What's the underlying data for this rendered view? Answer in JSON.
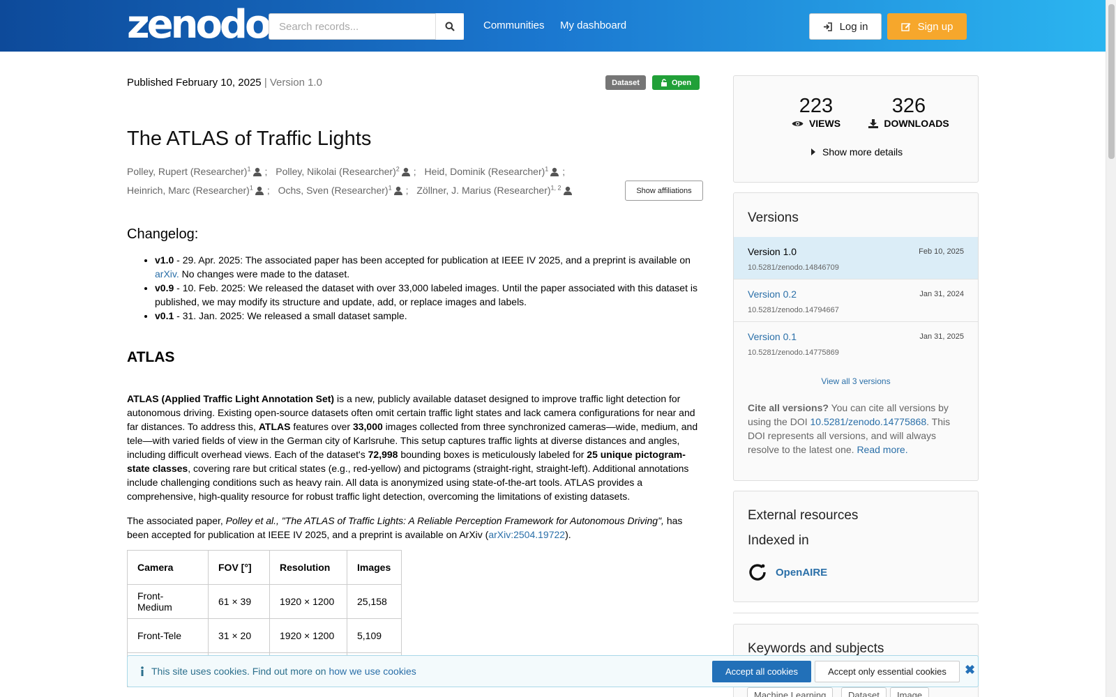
{
  "header": {
    "logo": "zenodo",
    "search_placeholder": "Search records...",
    "nav": [
      "Communities",
      "My dashboard"
    ],
    "login_label": "Log in",
    "signup_label": "Sign up"
  },
  "record": {
    "published_label": "Published February 10, 2025",
    "version_label": "| Version 1.0",
    "badge_type": "Dataset",
    "badge_access": "Open",
    "title": "The ATLAS of Traffic Lights",
    "creators": [
      {
        "name": "Polley, Rupert (Researcher)",
        "aff": "1"
      },
      {
        "name": "Polley, Nikolai (Researcher)",
        "aff": "2"
      },
      {
        "name": "Heid, Dominik (Researcher)",
        "aff": "1"
      },
      {
        "name": "Heinrich, Marc (Researcher)",
        "aff": "1"
      },
      {
        "name": "Ochs, Sven (Researcher)",
        "aff": "1"
      },
      {
        "name": "Zöllner, J. Marius (Researcher)",
        "aff": "1, 2"
      }
    ],
    "show_affiliations": "Show affiliations"
  },
  "changelog": {
    "heading": "Changelog:",
    "items": [
      {
        "ver": "v1.0",
        "pre": " - 29. Apr. 2025: The associated paper has been accepted for publication at IEEE IV 2025, and a preprint is available on ",
        "link": "arXiv.",
        "post": " No changes were made to the dataset."
      },
      {
        "ver": "v0.9",
        "pre": " - 10. Feb. 2025: We released the dataset with over 33,000 labeled images. Until the paper associated with this dataset is published, we may modify its structure and update, add, or replace images and labels.",
        "link": "",
        "post": ""
      },
      {
        "ver": "v0.1",
        "pre": " - 31. Jan. 2025: We released a small dataset sample.",
        "link": "",
        "post": ""
      }
    ]
  },
  "description": {
    "heading": "ATLAS",
    "p1": [
      {
        "b": "ATLAS (Applied Traffic Light Annotation Set)"
      },
      {
        "t": " is a new, publicly available dataset designed to improve traffic light detection for autonomous driving. Existing open-source datasets often omit certain traffic light states and lack camera configurations for near and far distances. To address this, "
      },
      {
        "b": "ATLAS"
      },
      {
        "t": " features over "
      },
      {
        "b": "33,000"
      },
      {
        "t": " images collected from three synchronized cameras—wide, medium, and tele—with varied fields of view in the German city of Karlsruhe. This setup captures traffic lights at diverse distances and angles, including difficult overhead views. Each of the dataset's "
      },
      {
        "b": "72,998"
      },
      {
        "t": " bounding boxes is meticulously labeled for "
      },
      {
        "b": "25 unique pictogram-state classes"
      },
      {
        "t": ", covering rare but critical states (e.g., red-yellow) and pictograms (straight-right, straight-left). Additional annotations include challenging conditions such as heavy rain. All data is anonymized using state-of-the-art tools. ATLAS provides a comprehensive, high-quality resource for robust traffic light detection, overcoming the limitations of existing datasets."
      }
    ],
    "p2_pre": "The associated paper, ",
    "p2_italic": "Polley et al., \"The ATLAS of Traffic Lights: A Reliable Perception Framework for Autonomous Driving\",",
    "p2_mid": " has been accepted for publication at IEEE IV 2025, and a preprint is available on ArXiv (",
    "p2_link": "arXiv:2504.19722",
    "p2_post": ")."
  },
  "camera_table": {
    "headers": [
      "Camera",
      "FOV [°]",
      "Resolution",
      "Images"
    ],
    "rows": [
      [
        "Front-Medium",
        "61 × 39",
        "1920 × 1200",
        "25,158"
      ],
      [
        "Front-Tele",
        "31 × 20",
        "1920 × 1200",
        "5,109"
      ]
    ]
  },
  "stats": {
    "views": "223",
    "views_label": "VIEWS",
    "downloads": "326",
    "downloads_label": "DOWNLOADS",
    "more_details": "Show more details"
  },
  "versions": {
    "heading": "Versions",
    "items": [
      {
        "name": "Version 1.0",
        "date": "Feb 10, 2025",
        "doi": "10.5281/zenodo.14846709",
        "active": true
      },
      {
        "name": "Version 0.2",
        "date": "Jan 31, 2024",
        "doi": "10.5281/zenodo.14794667",
        "active": false
      },
      {
        "name": "Version 0.1",
        "date": "Jan 31, 2025",
        "doi": "10.5281/zenodo.14775869",
        "active": false
      }
    ],
    "view_all": "View all 3 versions",
    "cite_bold": "Cite all versions?",
    "cite_pre": " You can cite all versions by using the DOI ",
    "cite_doi": "10.5281/zenodo.14775868",
    "cite_post": ". This DOI represents all versions, and will always resolve to the latest one. ",
    "read_more": "Read more."
  },
  "external": {
    "heading": "External resources",
    "indexed": "Indexed in",
    "openaire": "OpenAIRE"
  },
  "keywords": {
    "heading": "Keywords and subjects",
    "tags": [
      "Machine Learning",
      "Dataset",
      "Image"
    ]
  },
  "cookie": {
    "text": "This site uses cookies. Find out more on ",
    "link": "how we use cookies",
    "accept_all": "Accept all cookies",
    "accept_essential": "Accept only essential cookies"
  },
  "colors": {
    "header_start": "#0d4a9a",
    "header_end": "#2bb5f0",
    "signup": "#f6a72c",
    "open_badge": "#21a038",
    "link": "#2a6fa8"
  }
}
